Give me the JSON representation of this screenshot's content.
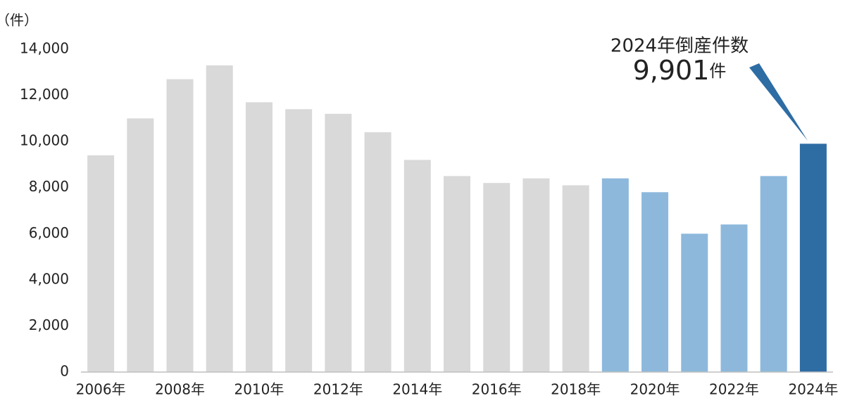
{
  "chart_data": {
    "type": "bar",
    "y_label": "（件）",
    "annotation": "2024年倒産件数",
    "value_unit": "件",
    "categories": [
      "2006年",
      null,
      "2008年",
      null,
      "2010年",
      null,
      "2012年",
      null,
      "2014年",
      null,
      "2016年",
      null,
      "2018年",
      null,
      "2020年",
      null,
      "2022年",
      null,
      "2024年"
    ],
    "values": [
      9400,
      11000,
      12700,
      13300,
      11700,
      11400,
      11200,
      10400,
      9200,
      8500,
      8200,
      8400,
      8100,
      8400,
      7800,
      6000,
      6400,
      8500,
      9901
    ],
    "value_labels": [
      null,
      null,
      null,
      null,
      null,
      null,
      null,
      null,
      null,
      null,
      null,
      null,
      null,
      null,
      null,
      null,
      null,
      null,
      "9,901"
    ],
    "colors": [
      "#d9d9d9",
      "#d9d9d9",
      "#d9d9d9",
      "#d9d9d9",
      "#d9d9d9",
      "#d9d9d9",
      "#d9d9d9",
      "#d9d9d9",
      "#d9d9d9",
      "#d9d9d9",
      "#d9d9d9",
      "#d9d9d9",
      "#d9d9d9",
      "#8db8dc",
      "#8db8dc",
      "#8db8dc",
      "#8db8dc",
      "#8db8dc",
      "#2e6ca4"
    ],
    "ylim": [
      0,
      14000
    ],
    "yticks": [
      0,
      {
        "value": 2000,
        "label": "2,000"
      },
      {
        "value": 4000,
        "label": "4,000"
      },
      {
        "value": 6000,
        "label": "6,000"
      },
      {
        "value": 8000,
        "label": "8,000"
      },
      {
        "value": 10000,
        "label": "10,000"
      },
      {
        "value": 12000,
        "label": "12,000"
      },
      {
        "value": 14000,
        "label": "14,000"
      }
    ],
    "grid": false
  }
}
